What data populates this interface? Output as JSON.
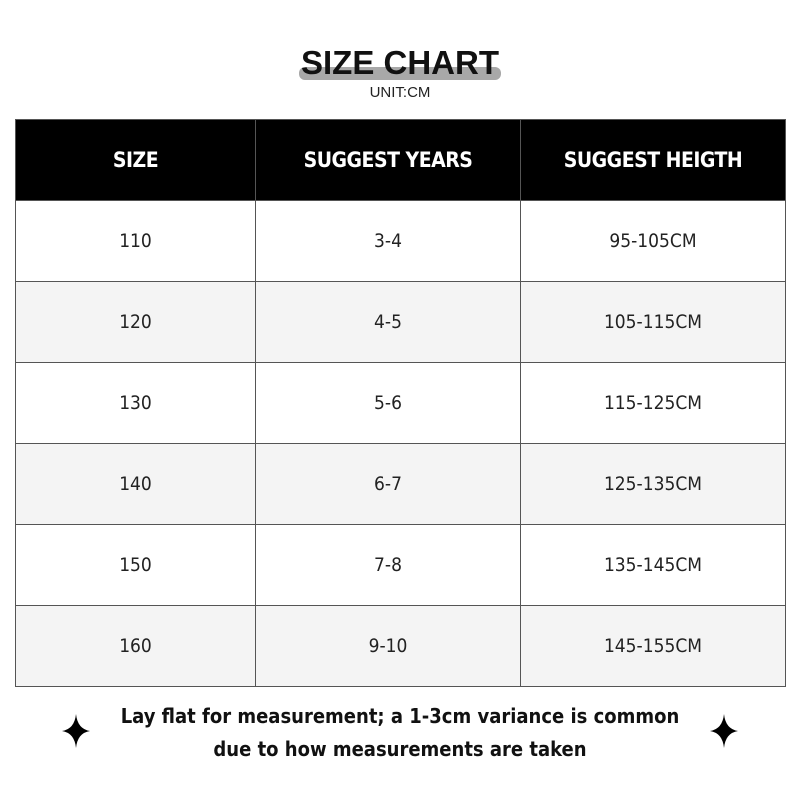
{
  "title": "SIZE CHART",
  "unit": "UNIT:CM",
  "table": {
    "headers": [
      "SIZE",
      "SUGGEST YEARS",
      "SUGGEST HEIGTH"
    ],
    "rows": [
      [
        "110",
        "3-4",
        "95-105CM"
      ],
      [
        "120",
        "4-5",
        "105-115CM"
      ],
      [
        "130",
        "5-6",
        "115-125CM"
      ],
      [
        "140",
        "6-7",
        "125-135CM"
      ],
      [
        "150",
        "7-8",
        "135-145CM"
      ],
      [
        "160",
        "9-10",
        "145-155CM"
      ]
    ]
  },
  "note": {
    "line1": "Lay flat for measurement; a 1-3cm variance is common",
    "line2": "due to how measurements are taken"
  },
  "icons": {
    "left": "sparkle-star-icon",
    "right": "sparkle-star-icon"
  },
  "colors": {
    "header_bg": "#000000",
    "alt_row_bg": "#f4f4f4",
    "title_highlight": "#a8a8a8"
  }
}
